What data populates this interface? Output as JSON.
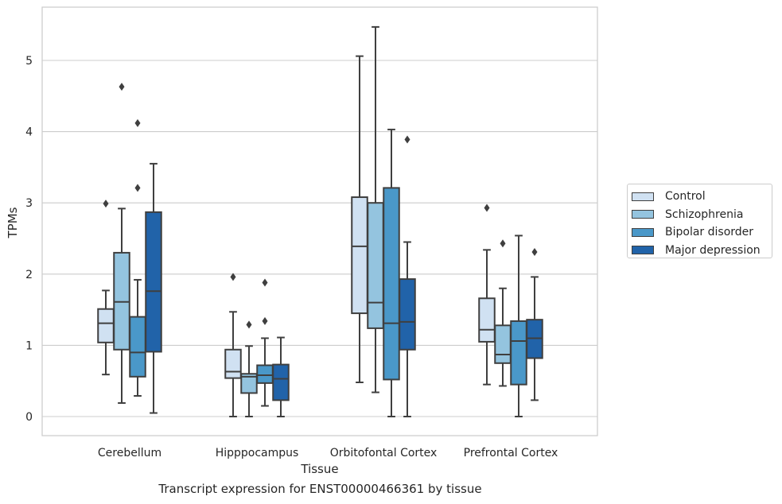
{
  "chart_data": {
    "type": "box",
    "caption": "Transcript expression for ENST00000466361 by tissue",
    "xlabel": "Tissue",
    "ylabel": "TPMs",
    "ylim": [
      -0.27,
      5.75
    ],
    "yticks": [
      0,
      1,
      2,
      3,
      4,
      5
    ],
    "grid": "horizontal",
    "legend_position": "right",
    "categories": [
      "Cerebellum",
      "Hipppocampus",
      "Orbitofontal Cortex",
      "Prefrontal Cortex"
    ],
    "series": [
      {
        "name": "Control",
        "color": "#d0e1f2",
        "boxes": [
          {
            "whislo": 0.59,
            "q1": 1.04,
            "med": 1.31,
            "q3": 1.51,
            "whishi": 1.77,
            "fliers": [
              2.99
            ]
          },
          {
            "whislo": 0.0,
            "q1": 0.54,
            "med": 0.63,
            "q3": 0.94,
            "whishi": 1.47,
            "fliers": [
              1.96
            ]
          },
          {
            "whislo": 0.48,
            "q1": 1.45,
            "med": 2.39,
            "q3": 3.08,
            "whishi": 5.06,
            "fliers": []
          },
          {
            "whislo": 0.45,
            "q1": 1.05,
            "med": 1.22,
            "q3": 1.66,
            "whishi": 2.34,
            "fliers": [
              2.93
            ]
          }
        ]
      },
      {
        "name": "Schizophrenia",
        "color": "#94c4df",
        "boxes": [
          {
            "whislo": 0.19,
            "q1": 0.94,
            "med": 1.61,
            "q3": 2.3,
            "whishi": 2.92,
            "fliers": [
              4.63
            ]
          },
          {
            "whislo": 0.0,
            "q1": 0.33,
            "med": 0.56,
            "q3": 0.6,
            "whishi": 0.99,
            "fliers": [
              1.29
            ]
          },
          {
            "whislo": 0.34,
            "q1": 1.24,
            "med": 1.6,
            "q3": 3.0,
            "whishi": 5.47,
            "fliers": []
          },
          {
            "whislo": 0.43,
            "q1": 0.75,
            "med": 0.87,
            "q3": 1.28,
            "whishi": 1.8,
            "fliers": [
              2.43
            ]
          }
        ]
      },
      {
        "name": "Bipolar disorder",
        "color": "#4a98c9",
        "boxes": [
          {
            "whislo": 0.29,
            "q1": 0.56,
            "med": 0.9,
            "q3": 1.4,
            "whishi": 1.92,
            "fliers": [
              3.21,
              4.12
            ]
          },
          {
            "whislo": 0.15,
            "q1": 0.47,
            "med": 0.58,
            "q3": 0.72,
            "whishi": 1.1,
            "fliers": [
              1.34,
              1.88
            ]
          },
          {
            "whislo": 0.0,
            "q1": 0.52,
            "med": 1.31,
            "q3": 3.21,
            "whishi": 4.03,
            "fliers": []
          },
          {
            "whislo": 0.0,
            "q1": 0.45,
            "med": 1.06,
            "q3": 1.34,
            "whishi": 2.54,
            "fliers": []
          }
        ]
      },
      {
        "name": "Major depression",
        "color": "#2163a9",
        "boxes": [
          {
            "whislo": 0.05,
            "q1": 0.91,
            "med": 1.76,
            "q3": 2.87,
            "whishi": 3.55,
            "fliers": []
          },
          {
            "whislo": 0.0,
            "q1": 0.23,
            "med": 0.53,
            "q3": 0.73,
            "whishi": 1.11,
            "fliers": []
          },
          {
            "whislo": 0.0,
            "q1": 0.94,
            "med": 1.33,
            "q3": 1.93,
            "whishi": 2.45,
            "fliers": [
              3.89
            ]
          },
          {
            "whislo": 0.23,
            "q1": 0.82,
            "med": 1.1,
            "q3": 1.36,
            "whishi": 1.96,
            "fliers": [
              2.31
            ]
          }
        ]
      }
    ]
  }
}
